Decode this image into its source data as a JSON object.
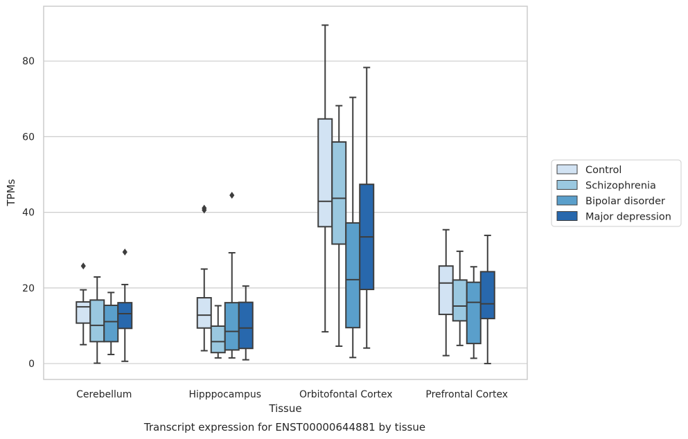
{
  "chart_data": {
    "type": "box",
    "xlabel": "Tissue",
    "ylabel": "TPMs",
    "caption": "Transcript expression for ENST00000644881 by tissue",
    "ylim": [
      -4.2,
      94.5
    ],
    "yticks": [
      "0",
      "20",
      "40",
      "60",
      "80"
    ],
    "grid": true,
    "legend_position": "right",
    "categories": [
      "Cerebellum",
      "Hipppocampus",
      "Orbitofontal Cortex",
      "Prefrontal Cortex"
    ],
    "series": [
      {
        "name": "Control",
        "color": "#d2e3f3",
        "boxes": [
          {
            "whisker_low": 5.0,
            "q1": 10.7,
            "median": 15.0,
            "q3": 16.3,
            "whisker_high": 19.5,
            "outliers": [
              25.8
            ]
          },
          {
            "whisker_low": 3.4,
            "q1": 9.4,
            "median": 12.8,
            "q3": 17.4,
            "whisker_high": 25.0,
            "outliers": [
              40.6,
              41.1
            ]
          },
          {
            "whisker_low": 8.4,
            "q1": 36.2,
            "median": 42.9,
            "q3": 64.7,
            "whisker_high": 89.5,
            "outliers": []
          },
          {
            "whisker_low": 2.1,
            "q1": 13.0,
            "median": 21.3,
            "q3": 25.8,
            "whisker_high": 35.4,
            "outliers": []
          }
        ]
      },
      {
        "name": "Schizophrenia",
        "color": "#9ac8e0",
        "boxes": [
          {
            "whisker_low": 0.1,
            "q1": 5.8,
            "median": 10.1,
            "q3": 16.8,
            "whisker_high": 22.9,
            "outliers": []
          },
          {
            "whisker_low": 1.5,
            "q1": 2.9,
            "median": 5.8,
            "q3": 9.9,
            "whisker_high": 15.3,
            "outliers": []
          },
          {
            "whisker_low": 4.6,
            "q1": 31.6,
            "median": 43.7,
            "q3": 58.6,
            "whisker_high": 68.2,
            "outliers": []
          },
          {
            "whisker_low": 4.8,
            "q1": 11.3,
            "median": 15.2,
            "q3": 22.1,
            "whisker_high": 29.7,
            "outliers": []
          }
        ]
      },
      {
        "name": "Bipolar disorder",
        "color": "#5a9fcb",
        "boxes": [
          {
            "whisker_low": 2.4,
            "q1": 5.8,
            "median": 11.1,
            "q3": 15.4,
            "whisker_high": 18.8,
            "outliers": []
          },
          {
            "whisker_low": 1.5,
            "q1": 3.6,
            "median": 8.5,
            "q3": 16.1,
            "whisker_high": 29.3,
            "outliers": [
              44.5
            ]
          },
          {
            "whisker_low": 1.6,
            "q1": 9.5,
            "median": 22.2,
            "q3": 37.2,
            "whisker_high": 70.4,
            "outliers": []
          },
          {
            "whisker_low": 1.4,
            "q1": 5.3,
            "median": 16.2,
            "q3": 21.5,
            "whisker_high": 25.6,
            "outliers": []
          }
        ]
      },
      {
        "name": "Major depression",
        "color": "#2868ad",
        "boxes": [
          {
            "whisker_low": 0.6,
            "q1": 9.3,
            "median": 13.2,
            "q3": 16.1,
            "whisker_high": 20.9,
            "outliers": [
              29.5
            ]
          },
          {
            "whisker_low": 1.0,
            "q1": 4.0,
            "median": 9.4,
            "q3": 16.2,
            "whisker_high": 20.5,
            "outliers": []
          },
          {
            "whisker_low": 4.1,
            "q1": 19.6,
            "median": 33.5,
            "q3": 47.4,
            "whisker_high": 78.3,
            "outliers": []
          },
          {
            "whisker_low": 0.0,
            "q1": 11.9,
            "median": 15.8,
            "q3": 24.3,
            "whisker_high": 33.9,
            "outliers": []
          }
        ]
      }
    ]
  }
}
